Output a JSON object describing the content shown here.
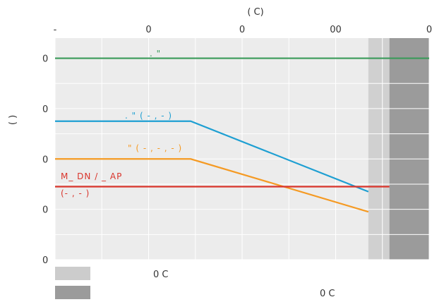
{
  "chart_data": {
    "type": "line",
    "xlabel": "( C)",
    "ylabel": "(  )",
    "x_ticks": [
      {
        "value": -80,
        "label": "-"
      },
      {
        "value": -40,
        "label": "0"
      },
      {
        "value": 0,
        "label": "0"
      },
      {
        "value": 40,
        "label": "00"
      },
      {
        "value": 80,
        "label": "0"
      }
    ],
    "y_ticks": [
      {
        "value": 0,
        "label": "0"
      },
      {
        "value": 20,
        "label": "0"
      },
      {
        "value": 40,
        "label": "0"
      },
      {
        "value": 60,
        "label": "0"
      },
      {
        "value": 80,
        "label": "0"
      }
    ],
    "xlim": [
      -80,
      80
    ],
    "ylim": [
      0,
      88
    ],
    "grid": true,
    "series": [
      {
        "label": ". \"",
        "color": "#3a9a5a",
        "points": [
          [
            -80,
            80
          ],
          [
            80,
            80
          ]
        ]
      },
      {
        "label": ". \" ( -    ,  -     )",
        "color": "#1e9fd2",
        "points": [
          [
            -80,
            55
          ],
          [
            -22,
            55
          ],
          [
            54,
            27
          ]
        ]
      },
      {
        "label": "\" ( -     ,  -     ,  -     )",
        "color": "#f59a23",
        "points": [
          [
            -80,
            40
          ],
          [
            -22,
            40
          ],
          [
            54,
            19
          ]
        ]
      },
      {
        "label": "M_   DN   / _  AP",
        "label2": "(-     , -     )",
        "color": "#d9342b",
        "points": [
          [
            -80,
            29
          ],
          [
            63,
            29
          ]
        ]
      }
    ],
    "bands": [
      {
        "x0": 54,
        "x1": 63,
        "color": "#d0d0d0"
      },
      {
        "x0": 63,
        "x1": 80,
        "color": "#9b9b9b"
      }
    ],
    "legend": [
      {
        "color": "#cccccc",
        "label": "0  C"
      },
      {
        "color": "#9b9b9b",
        "label": "0  C"
      }
    ]
  }
}
